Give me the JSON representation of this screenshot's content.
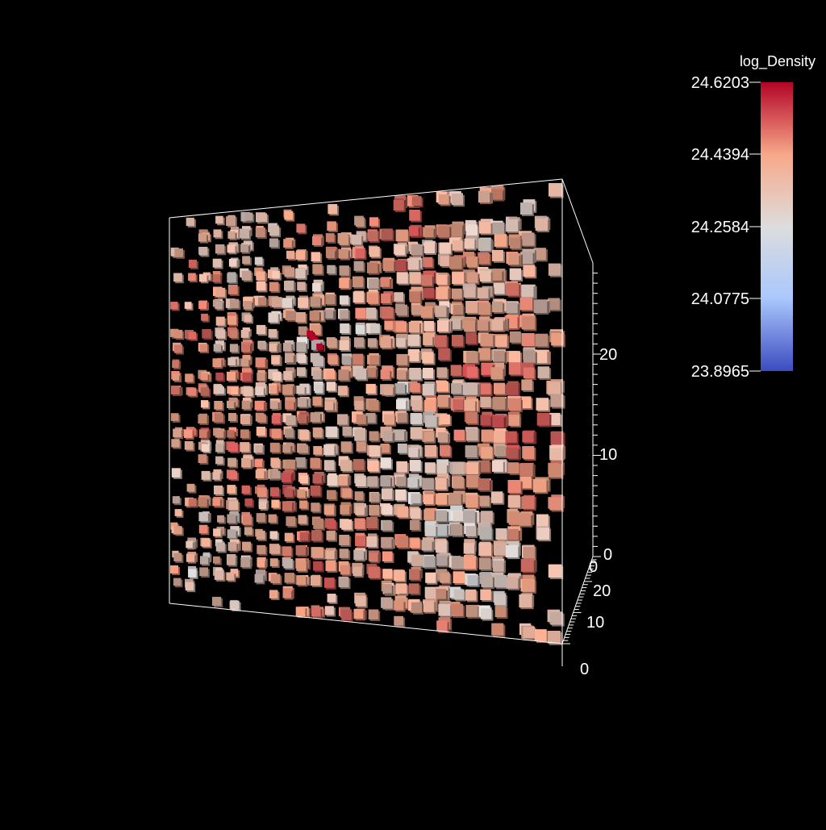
{
  "chart_data": {
    "type": "heatmap",
    "subtype": "3d-voxel-volume",
    "title": "",
    "background": "#000000",
    "colorbar": {
      "title": "log_Density",
      "min": 23.8965,
      "max": 24.6203,
      "ticks": [
        "24.6203",
        "24.4394",
        "24.2584",
        "24.0775",
        "23.8965"
      ],
      "colormap": "coolwarm",
      "colors": [
        "#3b4cc0",
        "#aac7fd",
        "#dddddd",
        "#f7a889",
        "#b40426"
      ]
    },
    "axes": {
      "vertical_ticks": [
        "0",
        "10",
        "20"
      ],
      "depth_ticks": [
        "0",
        "10",
        "20",
        "0"
      ],
      "range": [
        0,
        28
      ]
    },
    "volume": {
      "grid_size": 28,
      "typical_value": 24.36,
      "value_range": [
        24.2,
        24.62
      ],
      "hot_spot_value": 24.6203
    }
  }
}
